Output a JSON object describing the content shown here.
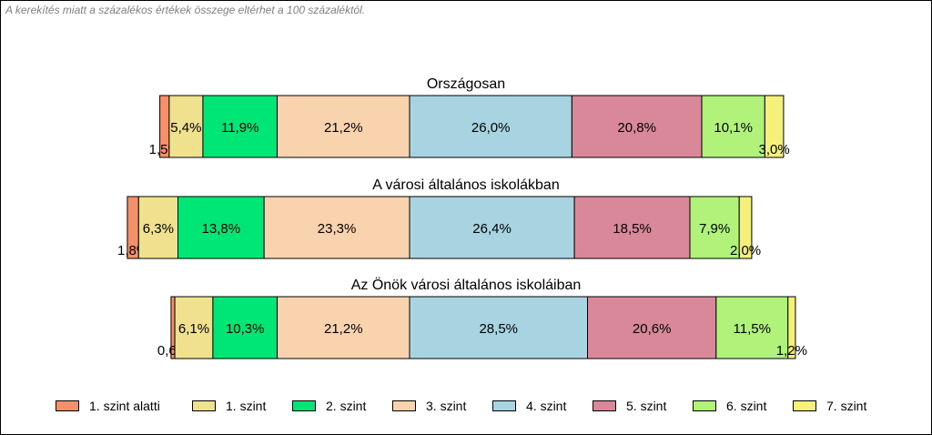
{
  "note": "A kerekítés miatt a  százalékos értékek összege eltérhet a 100 százaléktól.",
  "chart_data": {
    "type": "bar",
    "stacked": true,
    "orientation": "horizontal",
    "categories": [
      "1. szint alatti",
      "1. szint",
      "2. szint",
      "3. szint",
      "4. szint",
      "5. szint",
      "6. szint",
      "7. szint"
    ],
    "colors": [
      "#F4906A",
      "#F0E18E",
      "#00E676",
      "#F9D2AE",
      "#A8D3E1",
      "#D9889A",
      "#B0F27A",
      "#F4F07A"
    ],
    "groups": [
      {
        "title": "Országosan",
        "values": [
          1.5,
          5.4,
          11.9,
          21.2,
          26.0,
          20.8,
          10.1,
          3.0
        ],
        "labels": [
          "1,5%",
          "5,4%",
          "11,9%",
          "21,2%",
          "26,0%",
          "20,8%",
          "10,1%",
          "3,0%"
        ]
      },
      {
        "title": "A városi általános iskolákban",
        "values": [
          1.8,
          6.3,
          13.8,
          23.3,
          26.4,
          18.5,
          7.9,
          2.0
        ],
        "labels": [
          "1,8%",
          "6,3%",
          "13,8%",
          "23,3%",
          "26,4%",
          "18,5%",
          "7,9%",
          "2,0%"
        ]
      },
      {
        "title": "Az Önök városi általános iskoláiban",
        "values": [
          0.6,
          6.1,
          10.3,
          21.2,
          28.5,
          20.6,
          11.5,
          1.2
        ],
        "labels": [
          "0,6%",
          "6,1%",
          "10,3%",
          "21,2%",
          "28,5%",
          "20,6%",
          "11,5%",
          "1,2%"
        ]
      }
    ],
    "alignment": "centered between levels 3 and 4",
    "legend_position": "bottom"
  }
}
